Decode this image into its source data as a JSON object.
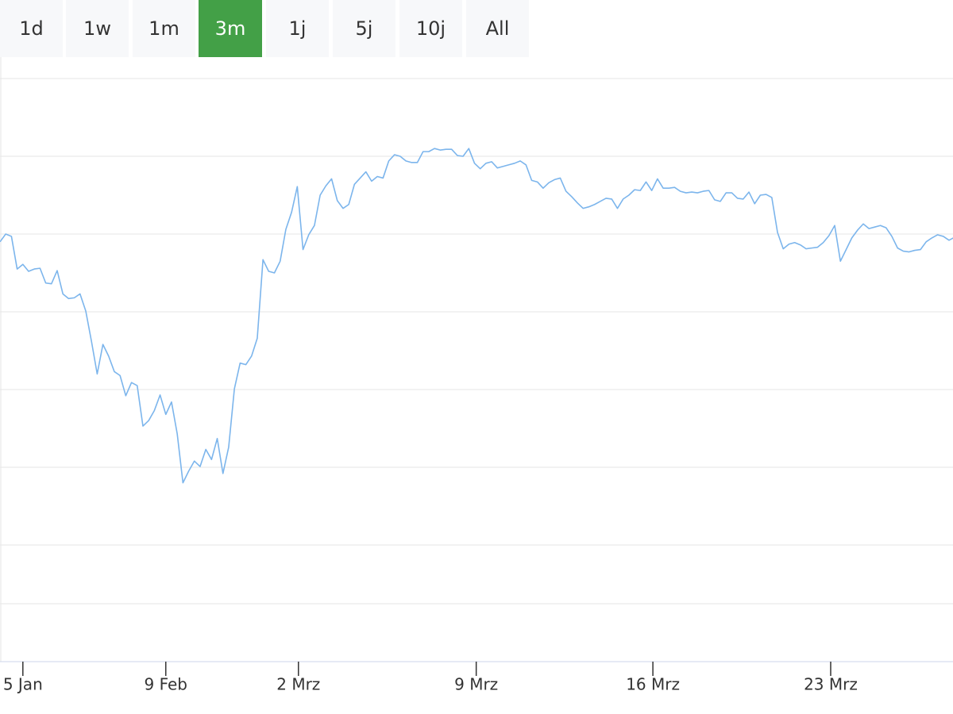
{
  "range_buttons": {
    "labels": [
      "1d",
      "1w",
      "1m",
      "3m",
      "1j",
      "5j",
      "10j",
      "All"
    ],
    "selected": 3,
    "color": "#f7f8fa",
    "selected_color": "#43a047"
  },
  "chart_data": {
    "type": "line",
    "series": [
      {
        "color": "#7cb5ec",
        "values": [
          4.9,
          5.0,
          4.97,
          4.55,
          4.61,
          4.52,
          4.55,
          4.56,
          4.37,
          4.36,
          4.53,
          4.23,
          4.17,
          4.18,
          4.23,
          4.01,
          3.62,
          3.2,
          3.58,
          3.43,
          3.23,
          3.18,
          2.92,
          3.09,
          3.05,
          2.53,
          2.6,
          2.73,
          2.93,
          2.68,
          2.84,
          2.43,
          1.8,
          1.95,
          2.08,
          2.01,
          2.23,
          2.1,
          2.37,
          1.92,
          2.26,
          3.01,
          3.34,
          3.32,
          3.43,
          3.66,
          4.67,
          4.52,
          4.5,
          4.65,
          5.06,
          5.28,
          5.61,
          4.8,
          4.99,
          5.11,
          5.5,
          5.62,
          5.71,
          5.43,
          5.33,
          5.38,
          5.64,
          5.72,
          5.8,
          5.68,
          5.74,
          5.72,
          5.94,
          6.02,
          6.0,
          5.94,
          5.92,
          5.92,
          6.06,
          6.06,
          6.1,
          6.08,
          6.09,
          6.09,
          6.01,
          6.0,
          6.1,
          5.91,
          5.84,
          5.91,
          5.93,
          5.85,
          5.87,
          5.89,
          5.91,
          5.94,
          5.89,
          5.69,
          5.67,
          5.59,
          5.66,
          5.7,
          5.72,
          5.55,
          5.48,
          5.4,
          5.33,
          5.35,
          5.38,
          5.42,
          5.46,
          5.45,
          5.33,
          5.45,
          5.5,
          5.57,
          5.56,
          5.67,
          5.56,
          5.71,
          5.59,
          5.59,
          5.6,
          5.55,
          5.53,
          5.54,
          5.53,
          5.55,
          5.56,
          5.44,
          5.42,
          5.53,
          5.53,
          5.46,
          5.45,
          5.54,
          5.39,
          5.5,
          5.51,
          5.47,
          5.02,
          4.81,
          4.87,
          4.89,
          4.86,
          4.81,
          4.82,
          4.83,
          4.89,
          4.98,
          5.11,
          4.65,
          4.8,
          4.95,
          5.05,
          5.13,
          5.07,
          5.09,
          5.11,
          5.08,
          4.97,
          4.82,
          4.78,
          4.77,
          4.79,
          4.8,
          4.9,
          4.95,
          4.99,
          4.97,
          4.92,
          4.96
        ]
      }
    ],
    "xlim": [
      0,
      166
    ],
    "xticks": [
      {
        "value": 4,
        "label": "5 Jan"
      },
      {
        "value": 29,
        "label": "9 Feb"
      },
      {
        "value": 52.2,
        "label": "2 Mrz"
      },
      {
        "value": 83.3,
        "label": "9 Mrz"
      },
      {
        "value": 114.2,
        "label": "16 Mrz"
      },
      {
        "value": 145.3,
        "label": "23 Mrz"
      }
    ],
    "ylim": [
      -0.5,
      7
    ],
    "yticks": [
      1,
      2,
      3,
      4,
      5,
      6,
      7
    ],
    "grid": true
  }
}
